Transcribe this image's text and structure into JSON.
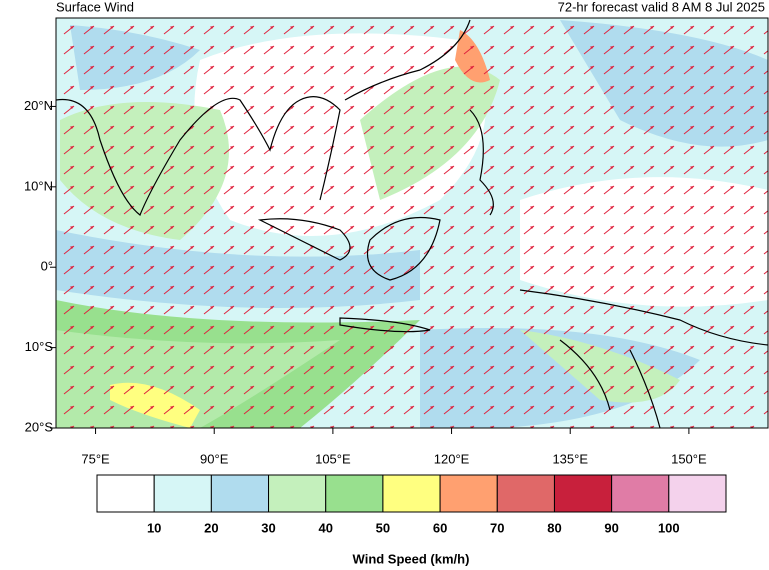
{
  "map": {
    "title": "Surface Wind",
    "subtitle": "72-hr forecast valid 8 AM 8 Jul 2025",
    "xlim": [
      70,
      160
    ],
    "ylim": [
      -20,
      31
    ],
    "xticks": [
      {
        "value": 75,
        "label": "75°E"
      },
      {
        "value": 90,
        "label": "90°E"
      },
      {
        "value": 105,
        "label": "105°E"
      },
      {
        "value": 120,
        "label": "120°E"
      },
      {
        "value": 135,
        "label": "135°E"
      },
      {
        "value": 150,
        "label": "150°E"
      }
    ],
    "yticks": [
      {
        "value": 20,
        "label": "20°N"
      },
      {
        "value": 10,
        "label": "10°N"
      },
      {
        "value": 0,
        "label": "0°"
      },
      {
        "value": -10,
        "label": "10°S"
      },
      {
        "value": -20,
        "label": "20°S"
      }
    ]
  },
  "colorbar": {
    "label": "Wind Speed (km/h)",
    "levels": [
      10,
      20,
      30,
      40,
      50,
      60,
      70,
      80,
      90,
      100
    ],
    "colors": [
      "#ffffff",
      "#d6f6f6",
      "#b0dcee",
      "#c4f0bc",
      "#98e08e",
      "#ffff80",
      "#ffa070",
      "#e06868",
      "#c8203c",
      "#e07ca6",
      "#f4d2ec"
    ]
  }
}
